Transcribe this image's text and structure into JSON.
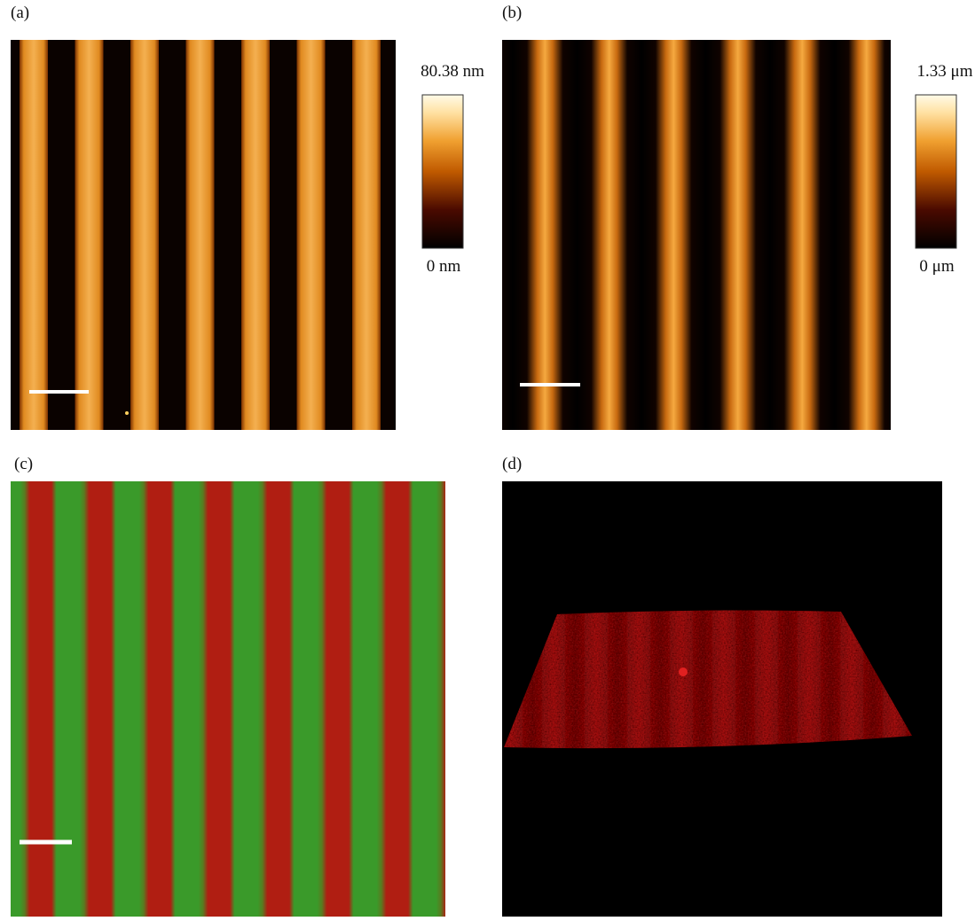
{
  "panels": [
    {
      "label": "(a)",
      "colorbar": {
        "max_label": "80.38 nm",
        "min_label": "0 nm"
      }
    },
    {
      "label": "(b)",
      "colorbar": {
        "max_label": "1.33 μm",
        "min_label": "0 μm"
      }
    },
    {
      "label": "(c)"
    },
    {
      "label": "(d)"
    }
  ]
}
